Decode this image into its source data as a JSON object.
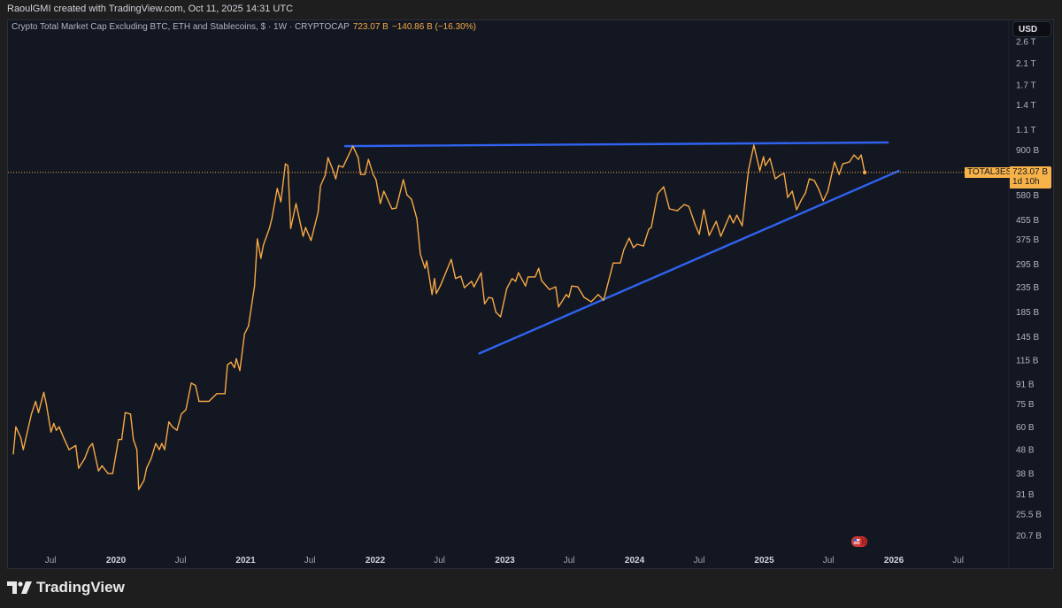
{
  "header": {
    "credit": "RaoulGMI created with TradingView.com, Oct 11, 2025 14:31 UTC"
  },
  "legend": {
    "title": "Crypto Total Market Cap Excluding BTC, ETH and Stablecoins, $ · 1W · CRYPTOCAP",
    "last": "723.07 B",
    "change": "−140.86 B (−16.30%)"
  },
  "price_axis": {
    "currency_button": "USD"
  },
  "price_tag": {
    "symbol": "TOTAL3ES",
    "value": "723.07 B",
    "countdown": "1d 10h"
  },
  "branding": {
    "logo_text": "TradingView"
  },
  "colors": {
    "line": "#f7a945",
    "trendline": "#2f63f0",
    "background": "#131722",
    "tag": "#f7b24a"
  },
  "chart_data": {
    "type": "line",
    "yscale": "log",
    "grid": false,
    "last_value": 723.07,
    "y_ticks": [
      {
        "label": "2.6 T",
        "value": 2600
      },
      {
        "label": "2.1 T",
        "value": 2100
      },
      {
        "label": "1.7 T",
        "value": 1700
      },
      {
        "label": "1.4 T",
        "value": 1400
      },
      {
        "label": "1.1 T",
        "value": 1100
      },
      {
        "label": "900 B",
        "value": 900
      },
      {
        "label": "580 B",
        "value": 580
      },
      {
        "label": "455 B",
        "value": 455
      },
      {
        "label": "375 B",
        "value": 375
      },
      {
        "label": "295 B",
        "value": 295
      },
      {
        "label": "235 B",
        "value": 235
      },
      {
        "label": "185 B",
        "value": 185
      },
      {
        "label": "145 B",
        "value": 145
      },
      {
        "label": "115 B",
        "value": 115
      },
      {
        "label": "91 B",
        "value": 91
      },
      {
        "label": "75 B",
        "value": 75
      },
      {
        "label": "60 B",
        "value": 60
      },
      {
        "label": "48 B",
        "value": 48
      },
      {
        "label": "38 B",
        "value": 38
      },
      {
        "label": "31 B",
        "value": 31
      },
      {
        "label": "25.5 B",
        "value": 25.5
      },
      {
        "label": "20.7 B",
        "value": 20.7
      }
    ],
    "x_ticks": [
      {
        "label": "Jul",
        "date": "2019-07-01",
        "major": false
      },
      {
        "label": "2020",
        "date": "2020-01-01",
        "major": true
      },
      {
        "label": "Jul",
        "date": "2020-07-01",
        "major": false
      },
      {
        "label": "2021",
        "date": "2021-01-01",
        "major": true
      },
      {
        "label": "Jul",
        "date": "2021-07-01",
        "major": false
      },
      {
        "label": "2022",
        "date": "2022-01-01",
        "major": true
      },
      {
        "label": "Jul",
        "date": "2022-07-01",
        "major": false
      },
      {
        "label": "2023",
        "date": "2023-01-01",
        "major": true
      },
      {
        "label": "Jul",
        "date": "2023-07-01",
        "major": false
      },
      {
        "label": "2024",
        "date": "2024-01-01",
        "major": true
      },
      {
        "label": "Jul",
        "date": "2024-07-01",
        "major": false
      },
      {
        "label": "2025",
        "date": "2025-01-01",
        "major": true
      },
      {
        "label": "Jul",
        "date": "2025-07-01",
        "major": false
      },
      {
        "label": "2026",
        "date": "2026-01-01",
        "major": true
      },
      {
        "label": "Jul",
        "date": "2026-07-01",
        "major": false
      }
    ],
    "series": [
      {
        "values": [
          [
            "2019-03-18",
            46
          ],
          [
            "2019-03-25",
            60
          ],
          [
            "2019-04-08",
            54
          ],
          [
            "2019-04-15",
            48
          ],
          [
            "2019-05-08",
            68
          ],
          [
            "2019-05-20",
            77
          ],
          [
            "2019-05-28",
            69
          ],
          [
            "2019-06-12",
            84
          ],
          [
            "2019-06-19",
            75
          ],
          [
            "2019-07-02",
            57
          ],
          [
            "2019-07-10",
            62
          ],
          [
            "2019-07-17",
            58
          ],
          [
            "2019-07-25",
            60
          ],
          [
            "2019-08-09",
            53
          ],
          [
            "2019-08-22",
            48
          ],
          [
            "2019-09-10",
            50
          ],
          [
            "2019-09-18",
            40
          ],
          [
            "2019-10-05",
            44
          ],
          [
            "2019-10-17",
            49
          ],
          [
            "2019-10-27",
            51
          ],
          [
            "2019-11-13",
            39
          ],
          [
            "2019-11-23",
            41
          ],
          [
            "2019-12-10",
            38
          ],
          [
            "2019-12-23",
            38
          ],
          [
            "2020-01-08",
            53
          ],
          [
            "2020-01-17",
            53
          ],
          [
            "2020-01-27",
            69
          ],
          [
            "2020-02-11",
            68
          ],
          [
            "2020-02-19",
            53
          ],
          [
            "2020-02-29",
            48
          ],
          [
            "2020-03-05",
            32.5
          ],
          [
            "2020-03-20",
            35.5
          ],
          [
            "2020-03-27",
            40
          ],
          [
            "2020-04-09",
            44
          ],
          [
            "2020-04-22",
            51
          ],
          [
            "2020-05-02",
            48
          ],
          [
            "2020-05-09",
            51
          ],
          [
            "2020-05-17",
            48
          ],
          [
            "2020-05-29",
            63
          ],
          [
            "2020-06-08",
            60
          ],
          [
            "2020-06-21",
            58
          ],
          [
            "2020-07-03",
            68
          ],
          [
            "2020-07-16",
            71
          ],
          [
            "2020-07-31",
            92
          ],
          [
            "2020-08-12",
            90
          ],
          [
            "2020-08-22",
            77
          ],
          [
            "2020-09-19",
            77
          ],
          [
            "2020-10-11",
            83
          ],
          [
            "2020-11-03",
            83
          ],
          [
            "2020-11-10",
            110
          ],
          [
            "2020-11-20",
            113
          ],
          [
            "2020-11-30",
            107
          ],
          [
            "2020-12-05",
            117
          ],
          [
            "2020-12-15",
            104
          ],
          [
            "2020-12-28",
            149
          ],
          [
            "2021-01-09",
            161
          ],
          [
            "2021-01-26",
            238
          ],
          [
            "2021-02-03",
            377
          ],
          [
            "2021-02-13",
            312
          ],
          [
            "2021-02-20",
            355
          ],
          [
            "2021-03-09",
            418
          ],
          [
            "2021-03-16",
            460
          ],
          [
            "2021-03-31",
            618
          ],
          [
            "2021-04-10",
            542
          ],
          [
            "2021-04-23",
            786
          ],
          [
            "2021-04-30",
            773
          ],
          [
            "2021-05-08",
            418
          ],
          [
            "2021-05-23",
            533
          ],
          [
            "2021-06-12",
            387
          ],
          [
            "2021-06-19",
            422
          ],
          [
            "2021-07-04",
            371
          ],
          [
            "2021-07-24",
            489
          ],
          [
            "2021-07-31",
            634
          ],
          [
            "2021-08-13",
            703
          ],
          [
            "2021-08-21",
            836
          ],
          [
            "2021-09-02",
            753
          ],
          [
            "2021-09-12",
            679
          ],
          [
            "2021-09-20",
            773
          ],
          [
            "2021-10-02",
            761
          ],
          [
            "2021-10-30",
            935
          ],
          [
            "2021-11-14",
            836
          ],
          [
            "2021-11-21",
            709
          ],
          [
            "2021-12-03",
            709
          ],
          [
            "2021-12-13",
            821
          ],
          [
            "2021-12-26",
            709
          ],
          [
            "2022-01-03",
            673
          ],
          [
            "2022-01-15",
            533
          ],
          [
            "2022-01-25",
            602
          ],
          [
            "2022-02-17",
            506
          ],
          [
            "2022-03-01",
            510
          ],
          [
            "2022-03-21",
            673
          ],
          [
            "2022-03-31",
            581
          ],
          [
            "2022-04-13",
            556
          ],
          [
            "2022-04-28",
            460
          ],
          [
            "2022-05-08",
            325
          ],
          [
            "2022-05-21",
            283
          ],
          [
            "2022-05-26",
            304
          ],
          [
            "2022-06-10",
            219
          ],
          [
            "2022-06-17",
            256
          ],
          [
            "2022-06-22",
            221
          ],
          [
            "2022-07-04",
            240
          ],
          [
            "2022-08-03",
            309
          ],
          [
            "2022-08-15",
            256
          ],
          [
            "2022-08-30",
            262
          ],
          [
            "2022-09-09",
            234
          ],
          [
            "2022-09-29",
            249
          ],
          [
            "2022-10-06",
            236
          ],
          [
            "2022-10-26",
            271
          ],
          [
            "2022-11-05",
            200
          ],
          [
            "2022-11-17",
            213
          ],
          [
            "2022-11-27",
            211
          ],
          [
            "2022-12-07",
            184
          ],
          [
            "2022-12-20",
            176
          ],
          [
            "2023-01-06",
            232
          ],
          [
            "2023-01-21",
            256
          ],
          [
            "2023-01-31",
            249
          ],
          [
            "2023-02-08",
            271
          ],
          [
            "2023-02-28",
            238
          ],
          [
            "2023-03-07",
            260
          ],
          [
            "2023-03-27",
            260
          ],
          [
            "2023-04-06",
            283
          ],
          [
            "2023-04-14",
            251
          ],
          [
            "2023-05-06",
            230
          ],
          [
            "2023-05-24",
            236
          ],
          [
            "2023-06-01",
            194
          ],
          [
            "2023-06-23",
            219
          ],
          [
            "2023-06-30",
            213
          ],
          [
            "2023-07-08",
            238
          ],
          [
            "2023-07-25",
            236
          ],
          [
            "2023-08-12",
            213
          ],
          [
            "2023-09-01",
            204
          ],
          [
            "2023-09-21",
            219
          ],
          [
            "2023-10-06",
            207
          ],
          [
            "2023-11-02",
            298
          ],
          [
            "2023-11-22",
            298
          ],
          [
            "2023-12-02",
            340
          ],
          [
            "2023-12-17",
            380
          ],
          [
            "2023-12-29",
            346
          ],
          [
            "2024-01-08",
            358
          ],
          [
            "2024-01-26",
            352
          ],
          [
            "2024-02-10",
            415
          ],
          [
            "2024-02-17",
            422
          ],
          [
            "2024-03-06",
            587
          ],
          [
            "2024-03-23",
            628
          ],
          [
            "2024-04-08",
            506
          ],
          [
            "2024-04-30",
            497
          ],
          [
            "2024-05-20",
            528
          ],
          [
            "2024-06-02",
            518
          ],
          [
            "2024-06-19",
            437
          ],
          [
            "2024-07-01",
            394
          ],
          [
            "2024-07-14",
            502
          ],
          [
            "2024-07-29",
            390
          ],
          [
            "2024-08-18",
            448
          ],
          [
            "2024-08-31",
            387
          ],
          [
            "2024-09-25",
            476
          ],
          [
            "2024-10-05",
            441
          ],
          [
            "2024-10-15",
            476
          ],
          [
            "2024-10-30",
            429
          ],
          [
            "2024-11-17",
            741
          ],
          [
            "2024-12-02",
            944
          ],
          [
            "2024-12-19",
            734
          ],
          [
            "2024-12-29",
            843
          ],
          [
            "2025-01-04",
            773
          ],
          [
            "2025-01-17",
            829
          ],
          [
            "2025-02-01",
            679
          ],
          [
            "2025-02-14",
            703
          ],
          [
            "2025-02-26",
            716
          ],
          [
            "2025-03-08",
            566
          ],
          [
            "2025-03-21",
            602
          ],
          [
            "2025-04-02",
            502
          ],
          [
            "2025-04-15",
            551
          ],
          [
            "2025-04-27",
            591
          ],
          [
            "2025-05-08",
            679
          ],
          [
            "2025-05-22",
            668
          ],
          [
            "2025-06-04",
            612
          ],
          [
            "2025-06-16",
            547
          ],
          [
            "2025-06-29",
            602
          ],
          [
            "2025-07-18",
            801
          ],
          [
            "2025-07-31",
            709
          ],
          [
            "2025-08-10",
            786
          ],
          [
            "2025-08-29",
            801
          ],
          [
            "2025-09-11",
            858
          ],
          [
            "2025-09-23",
            821
          ],
          [
            "2025-10-01",
            858
          ],
          [
            "2025-10-11",
            723.07
          ]
        ]
      }
    ],
    "trendlines": [
      {
        "kind": "resistance",
        "from": [
          "2021-10-08",
          935
        ],
        "to": [
          "2025-12-15",
          969
        ]
      },
      {
        "kind": "support",
        "from": [
          "2022-10-21",
          123
        ],
        "to": [
          "2026-01-15",
          734
        ]
      }
    ]
  }
}
